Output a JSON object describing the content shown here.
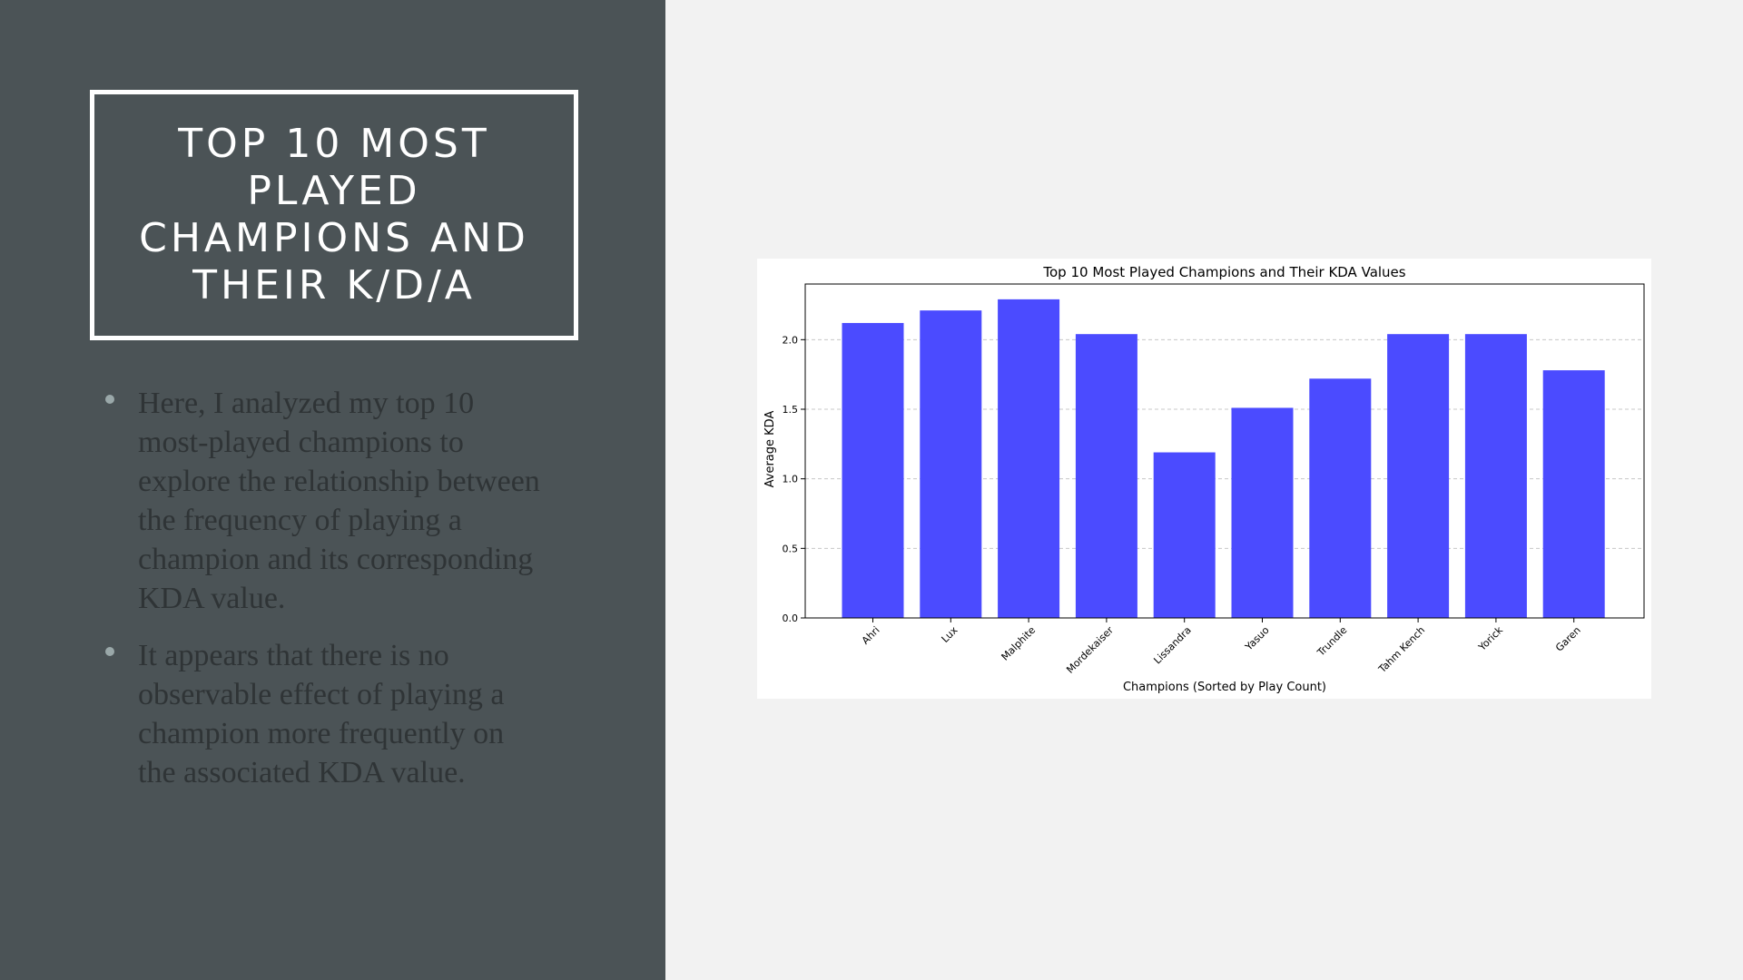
{
  "slide": {
    "title": "Top 10 Most Played Champions and Their K/D/A",
    "bullets": [
      "Here, I analyzed my top 10 most-played champions to explore the relationship between the frequency of playing a champion and its corresponding KDA value.",
      "It appears that there is no observable effect of playing a champion more frequently on the associated KDA value."
    ]
  },
  "colors": {
    "left_panel": "#4b5356",
    "bar": "#4b4bff",
    "slide_bg": "#f2f2f2"
  },
  "chart_data": {
    "type": "bar",
    "title": "Top 10 Most Played Champions and Their KDA Values",
    "xlabel": "Champions (Sorted by Play Count)",
    "ylabel": "Average KDA",
    "categories": [
      "Ahri",
      "Lux",
      "Malphite",
      "Mordekaiser",
      "Lissandra",
      "Yasuo",
      "Trundle",
      "Tahm Kench",
      "Yorick",
      "Garen"
    ],
    "values": [
      2.12,
      2.21,
      2.29,
      2.04,
      1.19,
      1.51,
      1.72,
      2.04,
      2.04,
      1.78
    ],
    "yticks": [
      "0.0",
      "0.5",
      "1.0",
      "1.5",
      "2.0"
    ],
    "ylim": [
      0,
      2.4
    ],
    "grid": "y-dashed"
  }
}
